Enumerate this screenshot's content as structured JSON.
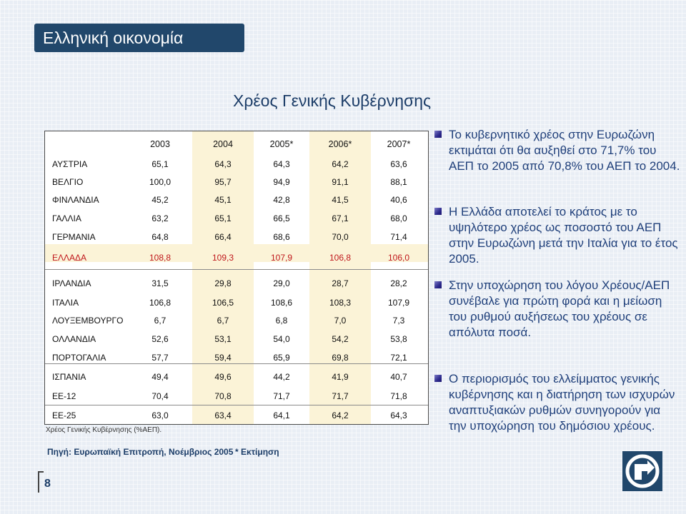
{
  "slide": {
    "title": "Ελληνική οικονομία",
    "page_number": "8"
  },
  "chart": {
    "heading": "Χρέος Γενικής Κυβέρνησης",
    "caption": "Χρέος Γενικής Κυβέρνησης (%ΑΕΠ).",
    "source": "Πηγή: Ευρωπαϊκή Επιτροπή, Νοέμβριος 2005",
    "estimate_note": "* Εκτίμηση"
  },
  "chart_data": {
    "type": "table",
    "columns": [
      "2003",
      "2004",
      "2005*",
      "2006*",
      "2007*"
    ],
    "rows": [
      {
        "country": "ΑΥΣΤΡΙΑ",
        "values": [
          "65,1",
          "64,3",
          "64,3",
          "64,2",
          "63,6"
        ]
      },
      {
        "country": "ΒΕΛΓΙΟ",
        "values": [
          "100,0",
          "95,7",
          "94,9",
          "91,1",
          "88,1"
        ]
      },
      {
        "country": "ΦΙΝΛΑΝΔΙΑ",
        "values": [
          "45,2",
          "45,1",
          "42,8",
          "41,5",
          "40,6"
        ]
      },
      {
        "country": "ΓΑΛΛΙΑ",
        "values": [
          "63,2",
          "65,1",
          "66,5",
          "67,1",
          "68,0"
        ]
      },
      {
        "country": "ΓΕΡΜΑΝΙΑ",
        "values": [
          "64,8",
          "66,4",
          "68,6",
          "70,0",
          "71,4"
        ]
      },
      {
        "country": "ΕΛΛΑΔΑ",
        "values": [
          "108,8",
          "109,3",
          "107,9",
          "106,8",
          "106,0"
        ],
        "highlight": true
      },
      {
        "country": "ΙΡΛΑΝΔΙΑ",
        "values": [
          "31,5",
          "29,8",
          "29,0",
          "28,7",
          "28,2"
        ]
      },
      {
        "country": "ΙΤΑΛΙΑ",
        "values": [
          "106,8",
          "106,5",
          "108,6",
          "108,3",
          "107,9"
        ]
      },
      {
        "country": "ΛΟΥΞΕΜΒΟΥΡΓΟ",
        "values": [
          "6,7",
          "6,7",
          "6,8",
          "7,0",
          "7,3"
        ]
      },
      {
        "country": "ΟΛΛΑΝΔΙΑ",
        "values": [
          "52,6",
          "53,1",
          "54,0",
          "54,2",
          "53,8"
        ]
      },
      {
        "country": "ΠΟΡΤΟΓΑΛΙΑ",
        "values": [
          "57,7",
          "59,4",
          "65,9",
          "69,8",
          "72,1"
        ]
      },
      {
        "country": "ΙΣΠΑΝΙΑ",
        "values": [
          "49,4",
          "49,6",
          "44,2",
          "41,9",
          "40,7"
        ]
      },
      {
        "country": "ΕΕ-12",
        "values": [
          "70,4",
          "70,8",
          "71,7",
          "71,7",
          "71,8"
        ]
      },
      {
        "country": "ΕΕ-25",
        "values": [
          "63,0",
          "63,4",
          "64,1",
          "64,2",
          "64,3"
        ]
      }
    ],
    "highlight_color": "#c0181c",
    "shade_color": "#fbf3d7"
  },
  "bullets": [
    "Το κυβερνητικό χρέος στην Ευρωζώνη εκτιμάται ότι θα αυξηθεί στο 71,7% του ΑΕΠ το 2005 από 70,8% του ΑΕΠ το 2004.",
    "Η Ελλάδα αποτελεί το κράτος με το υψηλότερο χρέος ως ποσοστό του ΑΕΠ στην Ευρωζώνη μετά την Ιταλία για το έτος 2005.",
    "Στην υποχώρηση του λόγου Χρέους/ΑΕΠ συνέβαλε για πρώτη φορά και η μείωση του ρυθμού αυξήσεως του χρέους σε απόλυτα ποσά.",
    "Ο περιορισμός του ελλείμματος γενικής κυβέρνησης και η διατήρηση των ισχυρών αναπτυξιακών ρυθμών συνηγορούν για την υποχώρηση του δημόσιου χρέους."
  ],
  "colors": {
    "title_bar": "#21476b",
    "bullet_text": "#1f3f7a"
  },
  "icons": {
    "bullet": "square-bullet-icon",
    "logo": "bank-logo-icon"
  }
}
